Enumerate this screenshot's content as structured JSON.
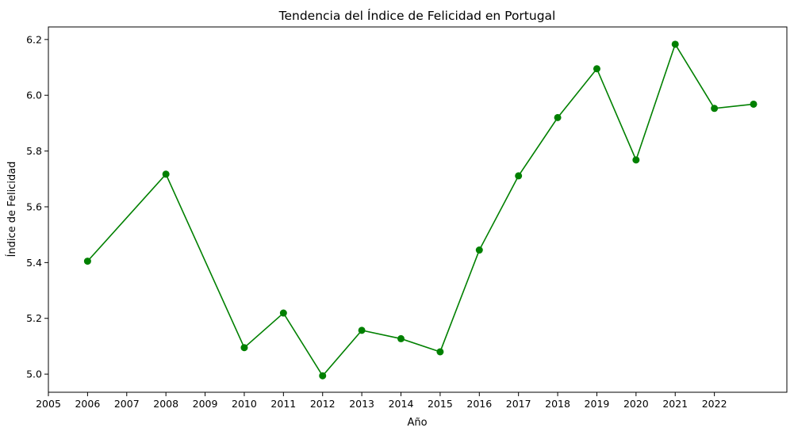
{
  "chart_data": {
    "type": "line",
    "title": "Tendencia del Índice de Felicidad en Portugal",
    "xlabel": "Año",
    "ylabel": "Índice de Felicidad",
    "x_ticks": [
      "2005",
      "2006",
      "2007",
      "2008",
      "2009",
      "2010",
      "2011",
      "2012",
      "2013",
      "2014",
      "2015",
      "2016",
      "2017",
      "2018",
      "2019",
      "2020",
      "2021",
      "2022"
    ],
    "y_ticks": [
      "5.0",
      "5.2",
      "5.4",
      "5.6",
      "5.8",
      "6.0",
      "6.2"
    ],
    "xlim": [
      2005,
      2023.85
    ],
    "ylim": [
      4.935,
      6.245
    ],
    "grid": false,
    "color": "#008000",
    "series": [
      {
        "x": [
          2006,
          2008,
          2010,
          2011,
          2012,
          2013,
          2014,
          2015,
          2016,
          2017,
          2018,
          2019,
          2020,
          2021,
          2022,
          2023
        ],
        "values": [
          5.405,
          5.717,
          5.095,
          5.219,
          4.994,
          5.157,
          5.127,
          5.08,
          5.445,
          5.711,
          5.92,
          6.095,
          5.768,
          6.183,
          5.953,
          5.968
        ]
      }
    ]
  }
}
